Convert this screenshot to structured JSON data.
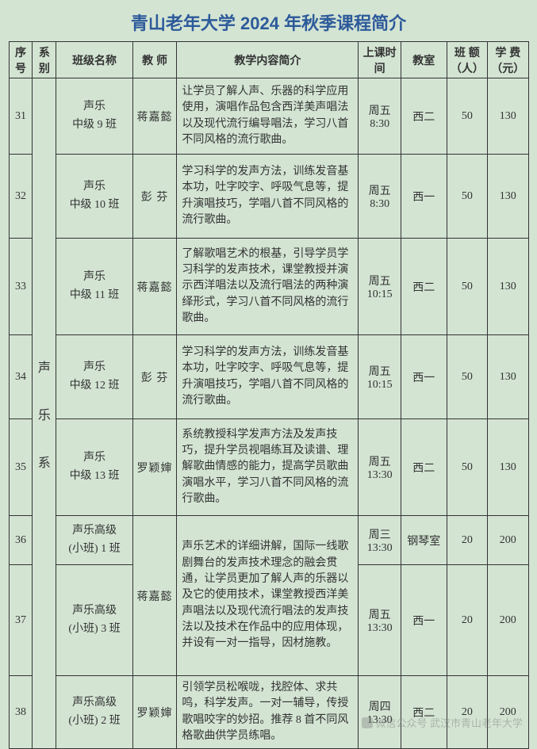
{
  "title": "青山老年大学 2024 年秋季课程简介",
  "headers": {
    "seq": "序号",
    "dept": "系别",
    "className": "班级名称",
    "teacher": "教 师",
    "content": "教学内容简介",
    "time": "上课时间",
    "room": "教室",
    "capacity": "班 额（人）",
    "fee": "学 费（元）"
  },
  "deptLabel": "声\n\n\n乐\n\n\n系",
  "rows": [
    {
      "seq": "31",
      "className": "声乐\n中级 9 班",
      "teacher": "蒋嘉懿",
      "content": "让学员了解人声、乐器的科学应用使用，演唱作品包含西洋美声唱法以及现代流行编导唱法，学习八首不同风格的流行歌曲。",
      "time": "周五\n8:30",
      "room": "西二",
      "capacity": "50",
      "fee": "130",
      "h": 96
    },
    {
      "seq": "32",
      "className": "声乐\n中级 10 班",
      "teacher": "彭  芬",
      "content": "学习科学的发声方法，训练发音基本功，吐字咬字、呼吸气息等，提升演唱技巧，学唱八首不同风格的流行歌曲。",
      "time": "周五\n8:30",
      "room": "西一",
      "capacity": "50",
      "fee": "130",
      "h": 106
    },
    {
      "seq": "33",
      "className": "声乐\n中级 11 班",
      "teacher": "蒋嘉懿",
      "content": "了解歌唱艺术的根基，引导学员学习科学的发声技术，课堂教授并演示西洋唱法以及流行唱法的两种演绎形式，学习八首不同风格的流行歌曲。",
      "time": "周五\n10:15",
      "room": "西二",
      "capacity": "50",
      "fee": "130",
      "h": 122
    },
    {
      "seq": "34",
      "className": "声乐\n中级 12 班",
      "teacher": "彭  芬",
      "content": "学习科学的发声方法，训练发音基本功，吐字咬字、呼吸气息等，提升演唱技巧，学唱八首不同风格的流行歌曲。",
      "time": "周五\n10:15",
      "room": "西一",
      "capacity": "50",
      "fee": "130",
      "h": 106
    },
    {
      "seq": "35",
      "className": "声乐\n中级 13 班",
      "teacher": "罗颖婶",
      "content": "系统教授科学发声方法及发声技巧，提升学员视唱练耳及读谱、理解歌曲情感的能力，提高学员歌曲演唱水平，学习八首不同风格的流行歌曲。",
      "time": "周五\n13:30",
      "room": "西二",
      "capacity": "50",
      "fee": "130",
      "h": 122
    },
    {
      "seq": "36",
      "className": "声乐高级\n(小班) 1 班",
      "teacher": "",
      "content": "声乐艺术的详细讲解，国际一线歌剧舞台的发声技术理念的融会贯通，让学员更",
      "time": "周三\n13:30",
      "room": "钢琴室",
      "capacity": "20",
      "fee": "200",
      "h": 62,
      "teacherMergeStart": true,
      "teacherMerge": "蒋嘉懿",
      "contentMergeStart": true
    },
    {
      "seq": "37",
      "className": "声乐高级\n(小班) 3 班",
      "teacher": "",
      "content": "加了解人声的乐器以及它的使用技术，课堂教授西洋美声唱法以及现代流行唱法的发声技法以及技术在作品中的应用体现，并设有一对一指导，因材施教。",
      "time": "周五\n13:30",
      "room": "西一",
      "capacity": "20",
      "fee": "200",
      "h": 140
    },
    {
      "seq": "38",
      "className": "声乐高级\n(小班) 2 班",
      "teacher": "罗颖婶",
      "content": "引领学员松喉咙，找腔体、求共鸣，科学发声。一对一辅导，传授歌唱咬字的妙招。推荐 8 首不同风格歌曲供学员练唱。",
      "time": "周四\n13:30",
      "room": "西二",
      "capacity": "20",
      "fee": "200",
      "h": 92
    }
  ],
  "mergedContent": "声乐艺术的详细讲解，国际一线歌剧舞台的发声技术理念的融会贯通，让学员更加了解人声的乐器以及它的使用技术，课堂教授西洋美声唱法以及现代流行唱法的发声技法以及技术在作品中的应用体现，并设有一对一指导，因材施教。",
  "watermark": {
    "prefix": "微信公众号",
    "name": "武汉市青山老年大学"
  }
}
